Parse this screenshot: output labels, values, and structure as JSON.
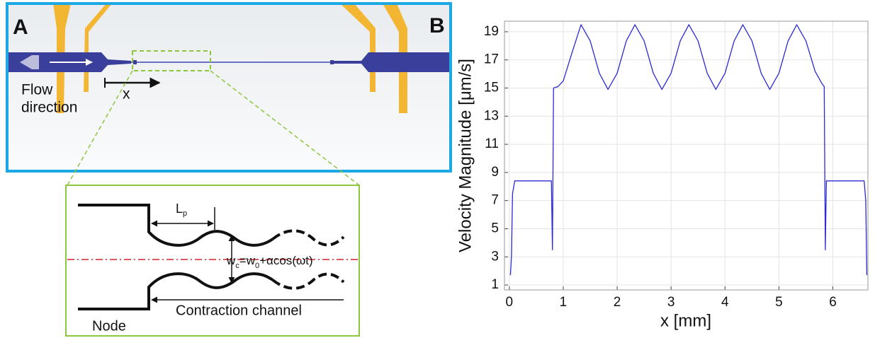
{
  "panel_a": {
    "label": "A",
    "flow_lines": [
      "Flow",
      "direction"
    ],
    "x_arrow_label": "x",
    "period_label": [
      "L",
      "p"
    ],
    "width_formula": [
      "w",
      "c",
      "=w",
      "0",
      "+αcos(ωt)"
    ],
    "channel_label": "Contraction channel",
    "node_label": "Node"
  },
  "chart_data": {
    "type": "line",
    "panel_label": "B",
    "x_label": "x [mm]",
    "y_label": "Velocity Magnitude [μm/s]",
    "xlim": [
      -0.09,
      6.65
    ],
    "ylim": [
      0.65,
      19.75
    ],
    "xticks": [
      0,
      1,
      2,
      3,
      4,
      5,
      6
    ],
    "yticks": [
      1,
      3,
      5,
      7,
      9,
      11,
      13,
      15,
      17,
      19
    ],
    "grid": true,
    "x": [
      0.02,
      0.04,
      0.06,
      0.1,
      0.4,
      0.78,
      0.8,
      0.82,
      0.9,
      1.0,
      1.17,
      1.33,
      1.5,
      1.67,
      1.83,
      2.0,
      2.17,
      2.33,
      2.5,
      2.67,
      2.83,
      3.0,
      3.17,
      3.33,
      3.5,
      3.67,
      3.83,
      4.0,
      4.17,
      4.33,
      4.5,
      4.67,
      4.83,
      5.0,
      5.17,
      5.33,
      5.5,
      5.67,
      5.8,
      5.84,
      5.86,
      5.88,
      6.2,
      6.58,
      6.61,
      6.63
    ],
    "series": [
      {
        "color": "#2a2ad8",
        "values": [
          1.7,
          3.0,
          7.5,
          8.4,
          8.4,
          8.4,
          3.5,
          15.0,
          15.1,
          15.5,
          17.6,
          19.5,
          18.35,
          16.05,
          14.9,
          16.05,
          18.35,
          19.5,
          18.35,
          16.05,
          14.9,
          16.05,
          18.35,
          19.5,
          18.35,
          16.05,
          14.9,
          16.05,
          18.35,
          19.5,
          18.35,
          16.05,
          14.9,
          16.05,
          18.35,
          19.5,
          18.35,
          16.2,
          15.3,
          15.1,
          3.5,
          8.4,
          8.4,
          8.4,
          7.0,
          1.7
        ]
      }
    ]
  }
}
